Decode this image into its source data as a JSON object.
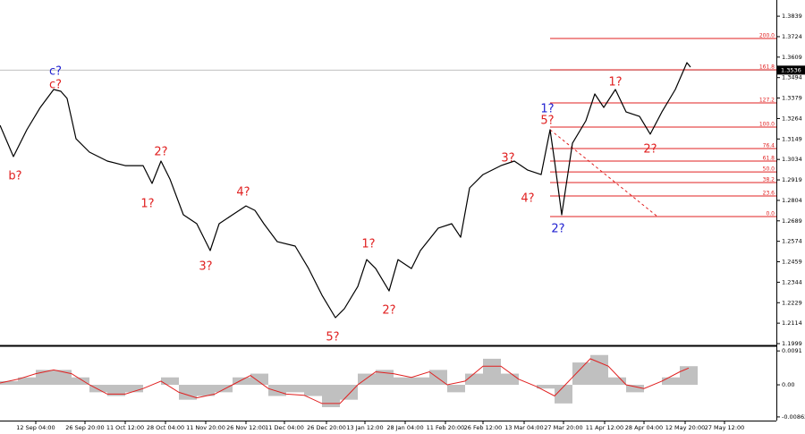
{
  "chart_data": [
    {
      "type": "line",
      "color": "#000000",
      "xlim": [
        0,
        173.6
      ],
      "ylim": [
        1.1994,
        1.393
      ],
      "yticks": [
        1.3839,
        1.3724,
        1.3609,
        1.3494,
        1.3379,
        1.3264,
        1.3149,
        1.3034,
        1.2919,
        1.2804,
        1.2689,
        1.2574,
        1.2459,
        1.2344,
        1.2229,
        1.2114,
        1.1999
      ],
      "x": [
        0,
        3,
        6,
        9,
        12,
        13.6,
        15,
        17,
        20,
        24,
        28,
        32,
        34,
        36,
        38,
        41,
        44,
        47,
        49,
        52,
        55,
        57,
        59,
        62,
        66,
        69,
        72,
        75,
        77,
        80,
        82,
        84,
        87,
        89,
        92,
        94,
        98,
        101,
        103,
        105,
        108,
        112,
        115,
        118,
        121,
        123,
        124,
        125.6,
        128,
        131,
        133,
        135,
        137.6,
        140,
        143,
        145.4,
        148,
        151,
        153.6,
        154.4
      ],
      "values": [
        1.3226,
        1.305,
        1.3201,
        1.3326,
        1.3427,
        1.3417,
        1.3377,
        1.315,
        1.3075,
        1.3025,
        1.2999,
        1.2999,
        1.2899,
        1.3025,
        1.2924,
        1.2723,
        1.2673,
        1.2522,
        1.2673,
        1.2723,
        1.2773,
        1.2748,
        1.2673,
        1.2572,
        1.2547,
        1.2421,
        1.2271,
        1.2145,
        1.2195,
        1.232,
        1.2471,
        1.2421,
        1.2295,
        1.2471,
        1.2421,
        1.2522,
        1.2648,
        1.2673,
        1.2597,
        1.2874,
        1.2949,
        1.2999,
        1.3025,
        1.2974,
        1.2949,
        1.3201,
        1.3025,
        1.2723,
        1.3125,
        1.3251,
        1.3402,
        1.3326,
        1.3427,
        1.3301,
        1.3276,
        1.3176,
        1.3301,
        1.3427,
        1.3578,
        1.3553
      ],
      "current_price": 1.3536,
      "fib_levels": [
        {
          "label": "200.0",
          "price": 1.3714
        },
        {
          "label": "161.8",
          "price": 1.3538
        },
        {
          "label": "127.2",
          "price": 1.3352
        },
        {
          "label": "100.0",
          "price": 1.3216
        },
        {
          "label": "76.4",
          "price": 1.3095
        },
        {
          "label": "61.8",
          "price": 1.3025
        },
        {
          "label": "50.0",
          "price": 1.2964
        },
        {
          "label": "38.2",
          "price": 1.2904
        },
        {
          "label": "23.6",
          "price": 1.2829
        },
        {
          "label": "0.0",
          "price": 1.2713
        }
      ],
      "fib_start_x": 123,
      "fib_anchor": {
        "x": [
          123,
          147
        ],
        "prices": [
          1.3201,
          1.2713
        ]
      },
      "wave_labels": [
        {
          "text": "c?",
          "x": 12.4,
          "price": 1.3528,
          "color": "#1f1fd0"
        },
        {
          "text": "c?",
          "x": 12.4,
          "price": 1.3452,
          "color": "#e02020"
        },
        {
          "text": "b?",
          "x": 3.4,
          "price": 1.2939,
          "color": "#e02020"
        },
        {
          "text": "2?",
          "x": 36,
          "price": 1.3075,
          "color": "#e02020"
        },
        {
          "text": "1?",
          "x": 33,
          "price": 1.2783,
          "color": "#e02020"
        },
        {
          "text": "3?",
          "x": 46,
          "price": 1.2431,
          "color": "#e02020"
        },
        {
          "text": "4?",
          "x": 54.4,
          "price": 1.2848,
          "color": "#e02020"
        },
        {
          "text": "5?",
          "x": 74.4,
          "price": 1.2034,
          "color": "#e02020"
        },
        {
          "text": "1?",
          "x": 82.4,
          "price": 1.2557,
          "color": "#e02020"
        },
        {
          "text": "2?",
          "x": 87,
          "price": 1.2185,
          "color": "#e02020"
        },
        {
          "text": "3?",
          "x": 113.6,
          "price": 1.304,
          "color": "#e02020"
        },
        {
          "text": "4?",
          "x": 118,
          "price": 1.2813,
          "color": "#e02020"
        },
        {
          "text": "5?",
          "x": 122.4,
          "price": 1.3251,
          "color": "#e02020"
        },
        {
          "text": "1?",
          "x": 122.4,
          "price": 1.3316,
          "color": "#1f1fd0"
        },
        {
          "text": "2?",
          "x": 124.8,
          "price": 1.2643,
          "color": "#1f1fd0"
        },
        {
          "text": "1?",
          "x": 137.6,
          "price": 1.3467,
          "color": "#e02020"
        },
        {
          "text": "2?",
          "x": 145.4,
          "price": 1.309,
          "color": "#e02020"
        }
      ]
    },
    {
      "type": "histogram",
      "color": "#c0c0c0",
      "signal_color": "#e02020",
      "xlim": [
        0,
        173.6
      ],
      "ylim": [
        -0.0096,
        0.0101
      ],
      "yticks": [
        0.0091,
        {
          "value": 0,
          "label": "0.00"
        },
        -0.00862
      ],
      "xticks": [
        {
          "value": 8,
          "label": "12 Sep 04:00"
        },
        {
          "value": 19,
          "label": "26 Sep 20:00"
        },
        {
          "value": 28,
          "label": "11 Oct 12:00"
        },
        {
          "value": 37,
          "label": "28 Oct 04:00"
        },
        {
          "value": 46,
          "label": "11 Nov 20:00"
        },
        {
          "value": 55,
          "label": "26 Nov 12:00"
        },
        {
          "value": 63.6,
          "label": "11 Dec 04:00"
        },
        {
          "value": 73,
          "label": "26 Dec 20:00"
        },
        {
          "value": 81.6,
          "label": "13 Jan 12:00"
        },
        {
          "value": 90.6,
          "label": "28 Jan 04:00"
        },
        {
          "value": 99.6,
          "label": "11 Feb 20:00"
        },
        {
          "value": 108,
          "label": "26 Feb 12:00"
        },
        {
          "value": 117.2,
          "label": "13 Mar 04:00"
        },
        {
          "value": 126,
          "label": "27 Mar 20:00"
        },
        {
          "value": 135.2,
          "label": "11 Apr 12:00"
        },
        {
          "value": 144,
          "label": "28 Apr 04:00"
        },
        {
          "value": 153.2,
          "label": "12 May 20:00"
        },
        {
          "value": 162,
          "label": "27 May 12:00"
        }
      ],
      "x": [
        0,
        4,
        8,
        12,
        16,
        20,
        24,
        28,
        32,
        36,
        40,
        44,
        48,
        52,
        56,
        60,
        64,
        68,
        72,
        76,
        80,
        84,
        88,
        92,
        96,
        100,
        104,
        108,
        112,
        116,
        120,
        124,
        128,
        132,
        136,
        140,
        144,
        148,
        152,
        154
      ],
      "values": [
        0.001,
        0.002,
        0.004,
        0.004,
        0.002,
        -0.002,
        -0.003,
        -0.002,
        0.0,
        0.002,
        -0.004,
        -0.003,
        -0.002,
        0.002,
        0.003,
        -0.003,
        -0.002,
        -0.003,
        -0.006,
        -0.004,
        0.003,
        0.004,
        0.002,
        0.002,
        0.004,
        -0.002,
        0.003,
        0.007,
        0.003,
        0.0,
        -0.001,
        -0.005,
        0.006,
        0.008,
        0.002,
        -0.002,
        0.0,
        0.002,
        0.005,
        0.005
      ],
      "signal": [
        0.0005,
        0.0015,
        0.003,
        0.004,
        0.003,
        0.0,
        -0.0025,
        -0.0025,
        -0.001,
        0.001,
        -0.002,
        -0.0035,
        -0.0025,
        0.0,
        0.0025,
        -0.001,
        -0.0025,
        -0.0028,
        -0.005,
        -0.005,
        0.0,
        0.0035,
        0.003,
        0.002,
        0.0035,
        0.0,
        0.001,
        0.005,
        0.005,
        0.0015,
        -0.0005,
        -0.003,
        0.002,
        0.007,
        0.005,
        0.0,
        -0.001,
        0.001,
        0.0035,
        0.0045
      ]
    }
  ]
}
